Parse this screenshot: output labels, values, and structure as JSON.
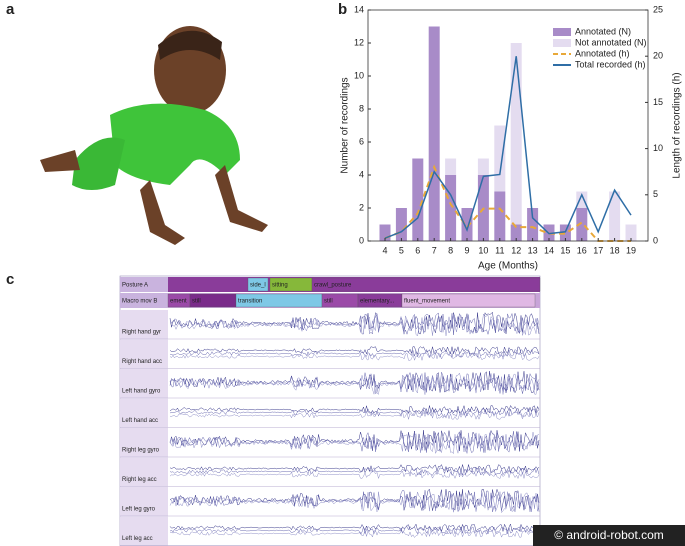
{
  "panels": {
    "a": "a",
    "b": "b",
    "c": "c"
  },
  "chart_data": {
    "type": "bar",
    "stacked": true,
    "ylabel": "Number of recordings",
    "y2label": "Length of recordings (h)",
    "xlabel": "Age (Months)",
    "categories": [
      "4",
      "5",
      "6",
      "7",
      "8",
      "9",
      "10",
      "11",
      "12",
      "13",
      "14",
      "15",
      "16",
      "17",
      "18",
      "19"
    ],
    "ylim": [
      0,
      14
    ],
    "yticks": [
      0,
      2,
      4,
      6,
      8,
      10,
      12,
      14
    ],
    "y2lim": [
      0,
      25
    ],
    "y2ticks": [
      0,
      5,
      10,
      15,
      20,
      25
    ],
    "legend": "upper right",
    "series": [
      {
        "name": "Annotated (N)",
        "type": "bar",
        "color": "#a88bc8",
        "values": [
          1,
          2,
          5,
          13,
          4,
          2,
          4,
          3,
          1,
          2,
          1,
          1,
          2,
          0,
          0,
          0
        ]
      },
      {
        "name": "Not annotated (N)",
        "type": "bar",
        "color": "#e4dcf0",
        "values": [
          0,
          0,
          0,
          0,
          1,
          0,
          1,
          4,
          11,
          0,
          0,
          0,
          1,
          0,
          3,
          1
        ]
      },
      {
        "name": "Annotated (h)",
        "type": "line",
        "dashed": true,
        "axis": "y2",
        "color": "#e8a838",
        "values": [
          0.3,
          1,
          3,
          8,
          4,
          1.5,
          3.5,
          3.5,
          1.5,
          1.5,
          0.8,
          0.8,
          2,
          0,
          0,
          0
        ]
      },
      {
        "name": "Total recorded (h)",
        "type": "line",
        "axis": "y2",
        "color": "#2f6ea6",
        "values": [
          0.3,
          1,
          2.5,
          7.5,
          5,
          1.2,
          7,
          7.2,
          20,
          2.5,
          0.8,
          1,
          5,
          1,
          5.5,
          2.8
        ]
      }
    ]
  },
  "annotation_view": {
    "tracks": [
      {
        "label": "Posture A",
        "segments": [
          "side_l",
          "sitting",
          "crawl_posture"
        ]
      },
      {
        "label": "Macro mov B",
        "segments": [
          "ement",
          "still",
          "transition",
          "still",
          "elementary...",
          "fluent_movement"
        ]
      }
    ],
    "signals": [
      "Right hand gyr",
      "Right hand acc",
      "Left hand gyro",
      "Left hand acc",
      "Right leg gyro",
      "Right leg acc",
      "Left leg gyro",
      "Left leg acc"
    ]
  },
  "watermark": "© android-robot.com"
}
